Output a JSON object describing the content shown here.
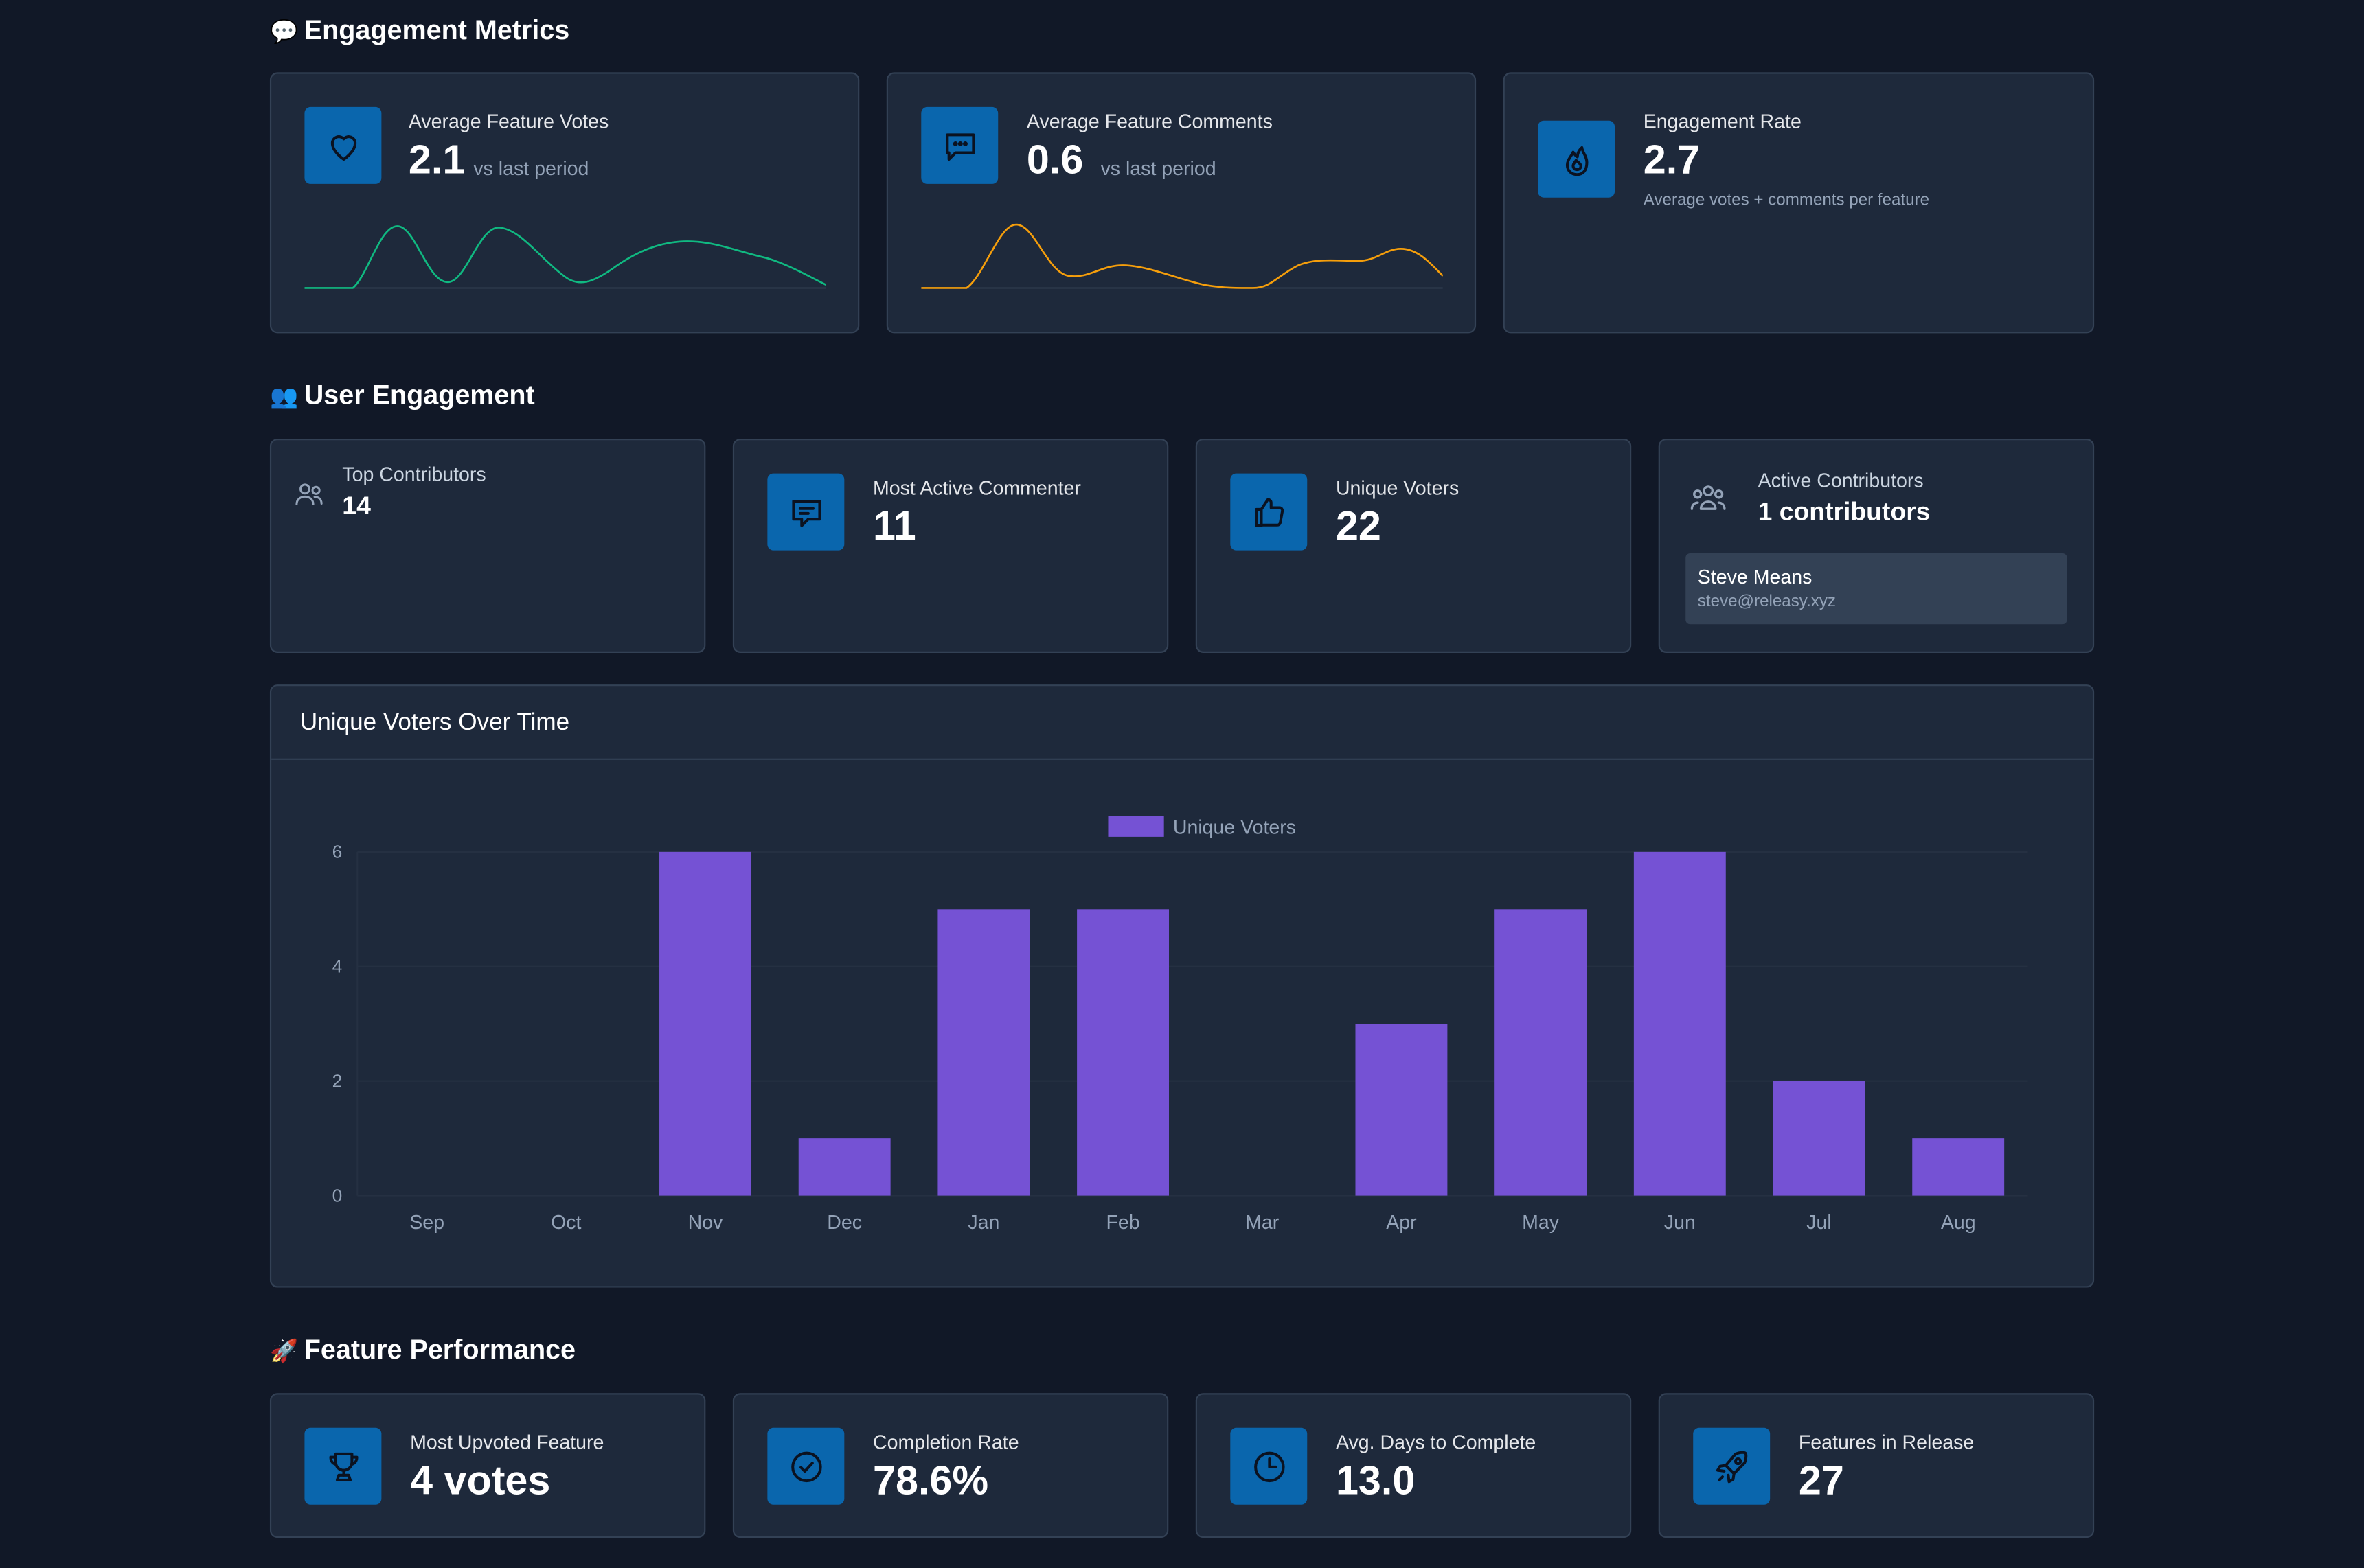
{
  "sections": {
    "engagement_metrics": {
      "emoji": "💬",
      "title": "Engagement Metrics"
    },
    "user_engagement": {
      "emoji": "👥",
      "title": "User Engagement"
    },
    "feature_performance": {
      "emoji": "🚀",
      "title": "Feature Performance"
    }
  },
  "engagement_metrics": {
    "avg_votes": {
      "label": "Average Feature Votes",
      "value": "2.1",
      "sub": "vs last period",
      "icon": "heart-icon",
      "sparkline_color": "#10b981"
    },
    "avg_comments": {
      "label": "Average Feature Comments",
      "value": "0.6",
      "sub": "vs last period",
      "icon": "chat-bubble-icon",
      "sparkline_color": "#f59e0b"
    },
    "engagement_rate": {
      "label": "Engagement Rate",
      "value": "2.7",
      "note": "Average votes + comments per feature",
      "icon": "fire-icon"
    }
  },
  "user_engagement": {
    "top_contributors": {
      "label": "Top Contributors",
      "value": "14",
      "icon": "users-icon"
    },
    "most_active_commenter": {
      "label": "Most Active Commenter",
      "value": "11",
      "icon": "message-icon"
    },
    "unique_voters": {
      "label": "Unique Voters",
      "value": "22",
      "icon": "thumbs-up-icon"
    },
    "active_contributors": {
      "label": "Active Contributors",
      "value": "1 contributors",
      "icon": "user-group-icon",
      "people": [
        {
          "name": "Steve Means",
          "email": "steve@releasy.xyz"
        }
      ]
    }
  },
  "chart_panel": {
    "title": "Unique Voters Over Time"
  },
  "chart_data": {
    "type": "bar",
    "title": "Unique Voters Over Time",
    "categories": [
      "Sep",
      "Oct",
      "Nov",
      "Dec",
      "Jan",
      "Feb",
      "Mar",
      "Apr",
      "May",
      "Jun",
      "Jul",
      "Aug"
    ],
    "series": [
      {
        "name": "Unique Voters",
        "values": [
          0,
          0,
          6,
          1,
          5,
          5,
          0,
          3,
          5,
          6,
          2,
          1
        ],
        "color": "#7552d4"
      }
    ],
    "yticks": [
      0,
      2,
      4,
      6
    ],
    "ylim": [
      0,
      6
    ],
    "legend": "top-center",
    "grid": true
  },
  "feature_performance": {
    "most_upvoted": {
      "label": "Most Upvoted Feature",
      "value": "4 votes",
      "icon": "trophy-icon"
    },
    "completion_rate": {
      "label": "Completion Rate",
      "value": "78.6%",
      "icon": "check-circle-icon"
    },
    "avg_days": {
      "label": "Avg. Days to Complete",
      "value": "13.0",
      "icon": "clock-icon"
    },
    "features_in_release": {
      "label": "Features in Release",
      "value": "27",
      "icon": "rocket-icon"
    }
  },
  "colors": {
    "background": "#111827",
    "card": "#1e293b",
    "border": "#334155",
    "icon_bg": "#0a66ad",
    "bar": "#7552d4"
  }
}
